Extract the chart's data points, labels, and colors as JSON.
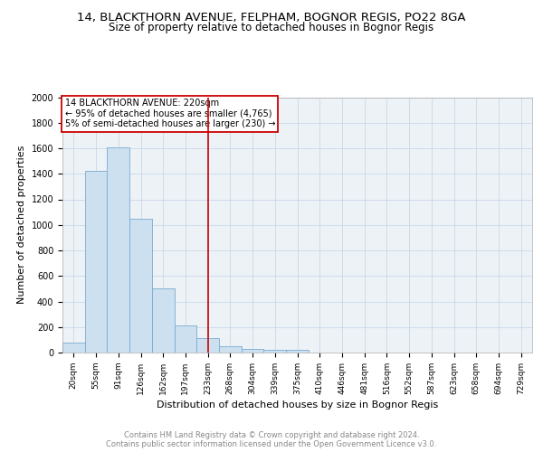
{
  "title": "14, BLACKTHORN AVENUE, FELPHAM, BOGNOR REGIS, PO22 8GA",
  "subtitle": "Size of property relative to detached houses in Bognor Regis",
  "xlabel": "Distribution of detached houses by size in Bognor Regis",
  "ylabel": "Number of detached properties",
  "categories": [
    "20sqm",
    "55sqm",
    "91sqm",
    "126sqm",
    "162sqm",
    "197sqm",
    "233sqm",
    "268sqm",
    "304sqm",
    "339sqm",
    "375sqm",
    "410sqm",
    "446sqm",
    "481sqm",
    "516sqm",
    "552sqm",
    "587sqm",
    "623sqm",
    "658sqm",
    "694sqm",
    "729sqm"
  ],
  "values": [
    80,
    1420,
    1610,
    1050,
    500,
    210,
    110,
    48,
    30,
    18,
    18,
    0,
    0,
    0,
    0,
    0,
    0,
    0,
    0,
    0,
    0
  ],
  "bar_color": "#cce0f0",
  "bar_edge_color": "#7aaad0",
  "vline_x_idx": 6.5,
  "vline_color": "#cc0000",
  "annotation_text": "14 BLACKTHORN AVENUE: 220sqm\n← 95% of detached houses are smaller (4,765)\n5% of semi-detached houses are larger (230) →",
  "annotation_box_color": "#ffffff",
  "annotation_box_edge": "#cc0000",
  "ylim": [
    0,
    2000
  ],
  "yticks": [
    0,
    200,
    400,
    600,
    800,
    1000,
    1200,
    1400,
    1600,
    1800,
    2000
  ],
  "grid_color": "#c8d8e8",
  "bg_color": "#edf2f7",
  "footer": "Contains HM Land Registry data © Crown copyright and database right 2024.\nContains public sector information licensed under the Open Government Licence v3.0.",
  "title_fontsize": 9.5,
  "subtitle_fontsize": 8.5,
  "xlabel_fontsize": 8,
  "ylabel_fontsize": 8
}
